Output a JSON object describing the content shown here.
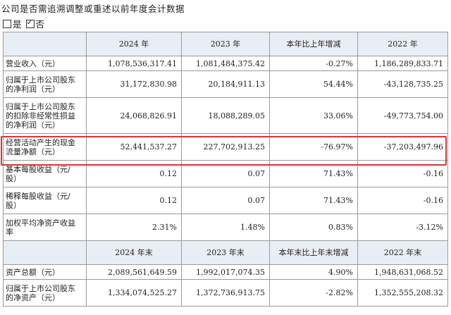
{
  "header": {
    "title": "公司是否需追溯调整或重述以前年度会计数据",
    "option_yes": "是",
    "option_no": "否"
  },
  "table1": {
    "columns": [
      "",
      "2024 年",
      "2023 年",
      "本年比上年增减",
      "2022 年"
    ],
    "rows": [
      [
        "营业收入（元）",
        "1,078,536,317.41",
        "1,081,484,375.42",
        "-0.27%",
        "1,186,289,833.71"
      ],
      [
        "归属于上市公司股东的净利润（元）",
        "31,172,830.98",
        "20,184,911.13",
        "54.44%",
        "-43,128,735.25"
      ],
      [
        "归属于上市公司股东的扣除非经常性损益的净利润（元）",
        "24,068,826.91",
        "18,088,289.05",
        "33.06%",
        "-49,773,754.00"
      ],
      [
        "经营活动产生的现金流量净额（元）",
        "52,441,537.27",
        "227,702,913.25",
        "-76.97%",
        "-37,203,497.96"
      ],
      [
        "基本每股收益（元/股）",
        "0.12",
        "0.07",
        "71.43%",
        "-0.16"
      ],
      [
        "稀释每股收益（元/股）",
        "0.12",
        "0.07",
        "71.43%",
        "-0.16"
      ],
      [
        "加权平均净资产收益率",
        "2.31%",
        "1.48%",
        "0.83%",
        "-3.12%"
      ]
    ]
  },
  "table2": {
    "columns": [
      "",
      "2024 年末",
      "2023 年末",
      "本年末比上年末增减",
      "2022 年末"
    ],
    "rows": [
      [
        "资产总额（元）",
        "2,089,561,649.59",
        "1,992,017,074.35",
        "4.90%",
        "1,948,631,068.52"
      ],
      [
        "归属于上市公司股东的净资产（元）",
        "1,334,074,525.27",
        "1,372,736,913.75",
        "-2.82%",
        "1,352,555,208.32"
      ]
    ]
  },
  "colors": {
    "header_bg": "#e9eef4",
    "highlight": "#d9343d",
    "border": "#9a9a9a"
  }
}
